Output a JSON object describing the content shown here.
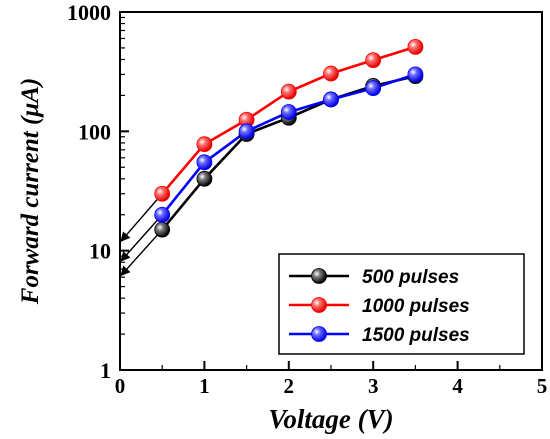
{
  "chart_data": {
    "type": "line",
    "title": "",
    "xlabel": "Voltage (V)",
    "ylabel": "Forward current (μA)",
    "x_scale": "linear",
    "y_scale": "log",
    "xlim": [
      0,
      5
    ],
    "ylim": [
      1,
      1000
    ],
    "x_ticks": [
      0,
      1,
      2,
      3,
      4,
      5
    ],
    "y_ticks": [
      1,
      10,
      100,
      1000
    ],
    "grid": false,
    "legend_position": "bottom-right",
    "series": [
      {
        "name": "500 pulses",
        "color": "#000000",
        "x": [
          0.5,
          1.0,
          1.5,
          2.0,
          2.5,
          3.0,
          3.5
        ],
        "y": [
          15,
          40,
          95,
          130,
          185,
          240,
          290
        ],
        "extrapolation": {
          "x": [
            0.0,
            0.5
          ],
          "y": [
            6.2,
            15
          ]
        }
      },
      {
        "name": "1000 pulses",
        "color": "#ff0000",
        "x": [
          0.5,
          1.0,
          1.5,
          2.0,
          2.5,
          3.0,
          3.5
        ],
        "y": [
          30,
          78,
          125,
          215,
          305,
          395,
          510
        ],
        "extrapolation": {
          "x": [
            0.0,
            0.5
          ],
          "y": [
            12,
            30
          ]
        }
      },
      {
        "name": "1500 pulses",
        "color": "#0000ff",
        "x": [
          0.5,
          1.0,
          1.5,
          2.0,
          2.5,
          3.0,
          3.5
        ],
        "y": [
          20,
          55,
          100,
          145,
          185,
          230,
          300
        ],
        "extrapolation": {
          "x": [
            0.0,
            0.5
          ],
          "y": [
            8.2,
            20
          ]
        }
      }
    ]
  }
}
